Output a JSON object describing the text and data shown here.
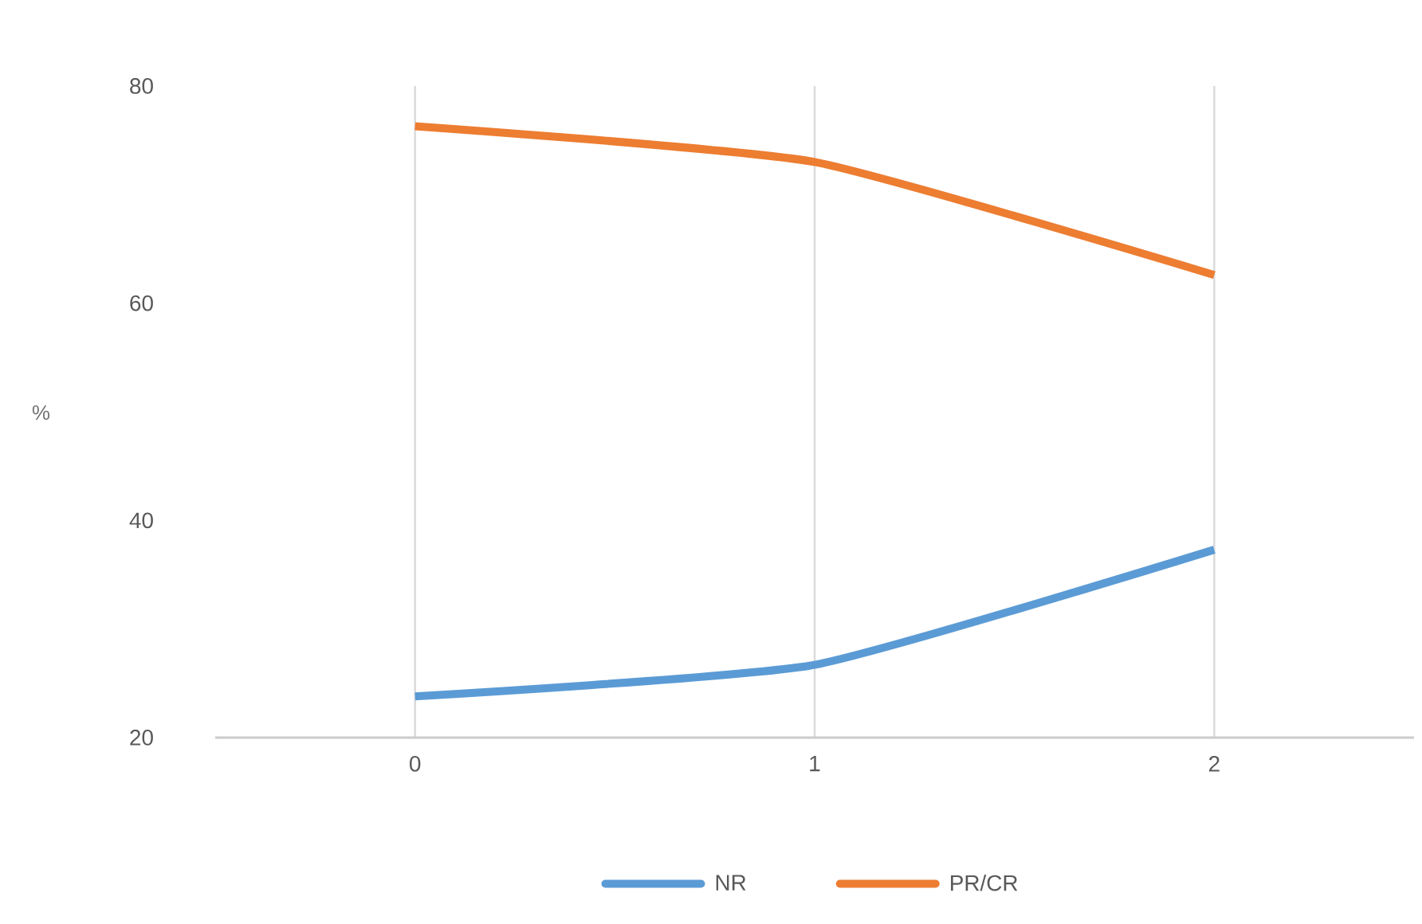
{
  "chart_data": {
    "type": "line",
    "ylabel": "%",
    "categories": [
      "0",
      "1",
      "2"
    ],
    "series": [
      {
        "name": "NR",
        "color": "#5b9bd5",
        "values": [
          23.8,
          26.7,
          37.3
        ]
      },
      {
        "name": "PR/CR",
        "color": "#ed7d31",
        "values": [
          76.3,
          73.0,
          62.6
        ]
      }
    ],
    "ylim": [
      20,
      80
    ],
    "yticks": [
      20,
      40,
      60,
      80
    ],
    "grid": "x",
    "legend": "bottom",
    "marker": "none",
    "line_style": "solid"
  }
}
